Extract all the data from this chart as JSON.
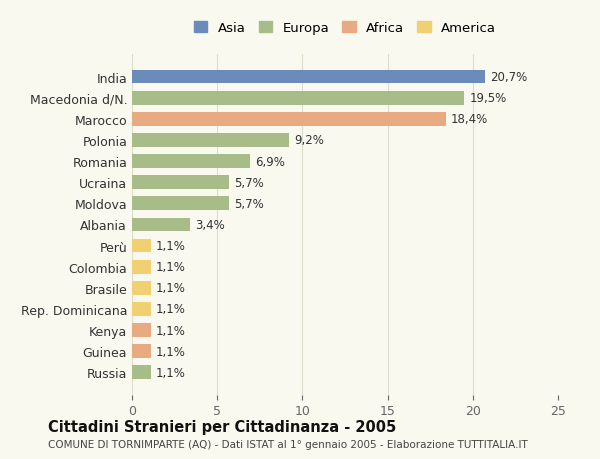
{
  "categories": [
    "India",
    "Macedonia d/N.",
    "Marocco",
    "Polonia",
    "Romania",
    "Ucraina",
    "Moldova",
    "Albania",
    "Perù",
    "Colombia",
    "Brasile",
    "Rep. Dominicana",
    "Kenya",
    "Guinea",
    "Russia"
  ],
  "values": [
    20.7,
    19.5,
    18.4,
    9.2,
    6.9,
    5.7,
    5.7,
    3.4,
    1.1,
    1.1,
    1.1,
    1.1,
    1.1,
    1.1,
    1.1
  ],
  "labels": [
    "20,7%",
    "19,5%",
    "18,4%",
    "9,2%",
    "6,9%",
    "5,7%",
    "5,7%",
    "3,4%",
    "1,1%",
    "1,1%",
    "1,1%",
    "1,1%",
    "1,1%",
    "1,1%",
    "1,1%"
  ],
  "colors": [
    "#6b8cba",
    "#a8bc8a",
    "#e8aa80",
    "#a8bc8a",
    "#a8bc8a",
    "#a8bc8a",
    "#a8bc8a",
    "#a8bc8a",
    "#f0d070",
    "#f0d070",
    "#f0d070",
    "#f0d070",
    "#e8aa80",
    "#e8aa80",
    "#a8bc8a"
  ],
  "continent": [
    "Asia",
    "Europa",
    "Africa",
    "Europa",
    "Europa",
    "Europa",
    "Europa",
    "Europa",
    "America",
    "America",
    "America",
    "America",
    "Africa",
    "Africa",
    "Europa"
  ],
  "legend_labels": [
    "Asia",
    "Europa",
    "Africa",
    "America"
  ],
  "legend_colors": [
    "#6b8cba",
    "#a8bc8a",
    "#e8aa80",
    "#f0d070"
  ],
  "title": "Cittadini Stranieri per Cittadinanza - 2005",
  "subtitle": "COMUNE DI TORNIMPARTE (AQ) - Dati ISTAT al 1° gennaio 2005 - Elaborazione TUTTITALIA.IT",
  "xlim": [
    0,
    25
  ],
  "xticks": [
    0,
    5,
    10,
    15,
    20,
    25
  ],
  "bg_color": "#f9f9f0",
  "grid_color": "#ddddcc"
}
